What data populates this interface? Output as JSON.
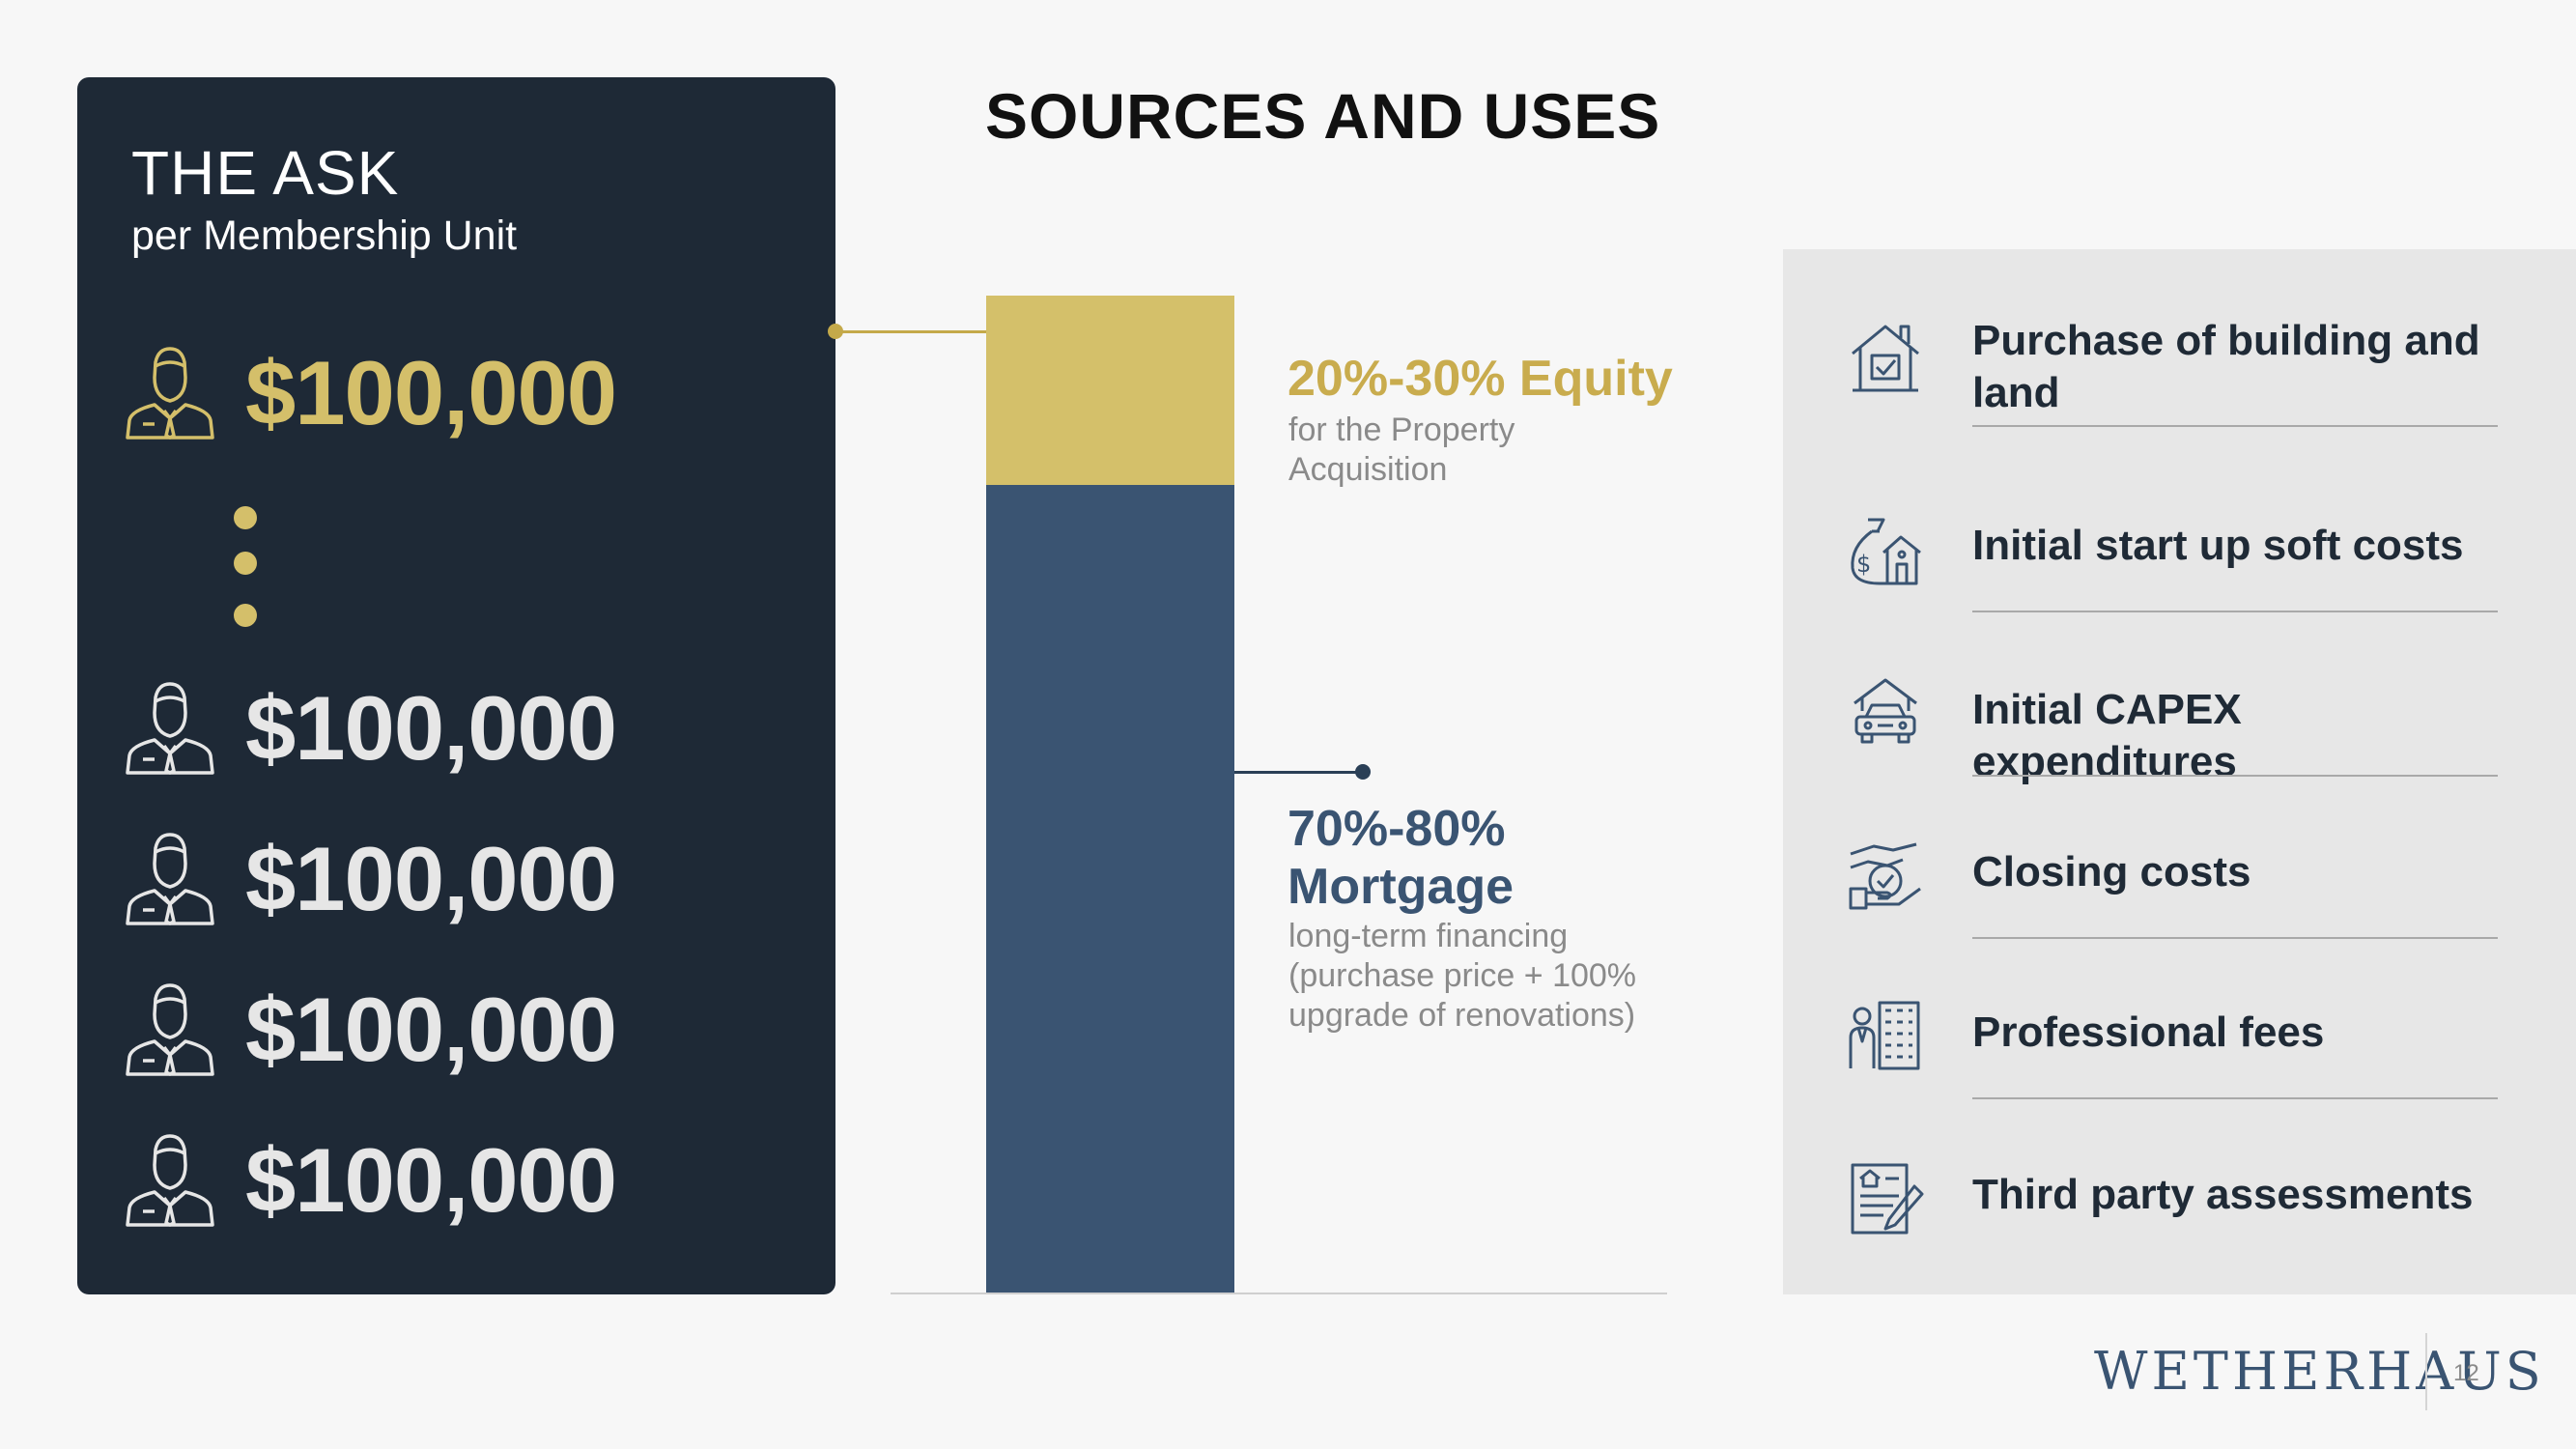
{
  "ask": {
    "title": "THE ASK",
    "subtitle": "per Membership Unit",
    "amounts": [
      "$100,000",
      "$100,000",
      "$100,000",
      "$100,000",
      "$100,000"
    ]
  },
  "main": {
    "title": "SOURCES AND USES"
  },
  "sources": {
    "equity": {
      "heading": "20%-30% Equity",
      "sub": "for the Property Acquisition"
    },
    "mortgage": {
      "heading": "70%-80% Mortgage",
      "sub": "long-term financing (purchase price + 100% upgrade of renovations)"
    },
    "bar_share": {
      "equity": 0.19,
      "mortgage": 0.81
    }
  },
  "uses": [
    {
      "label": "Purchase of building and land",
      "icon": "house-check-icon"
    },
    {
      "label": "Initial start up soft costs",
      "icon": "money-bag-house-icon"
    },
    {
      "label": "Initial CAPEX expenditures",
      "icon": "house-car-icon"
    },
    {
      "label": "Closing costs",
      "icon": "hand-coin-icon"
    },
    {
      "label": "Professional fees",
      "icon": "professional-building-icon"
    },
    {
      "label": "Third party assessments",
      "icon": "document-pen-icon"
    }
  ],
  "footer": {
    "brand": "WETHERHAUS",
    "page": "12"
  },
  "colors": {
    "navy": "#1e2936",
    "gold": "#d4c06a",
    "mortgage_blue": "#3a5472",
    "panel_gray": "#e7e7e7"
  }
}
